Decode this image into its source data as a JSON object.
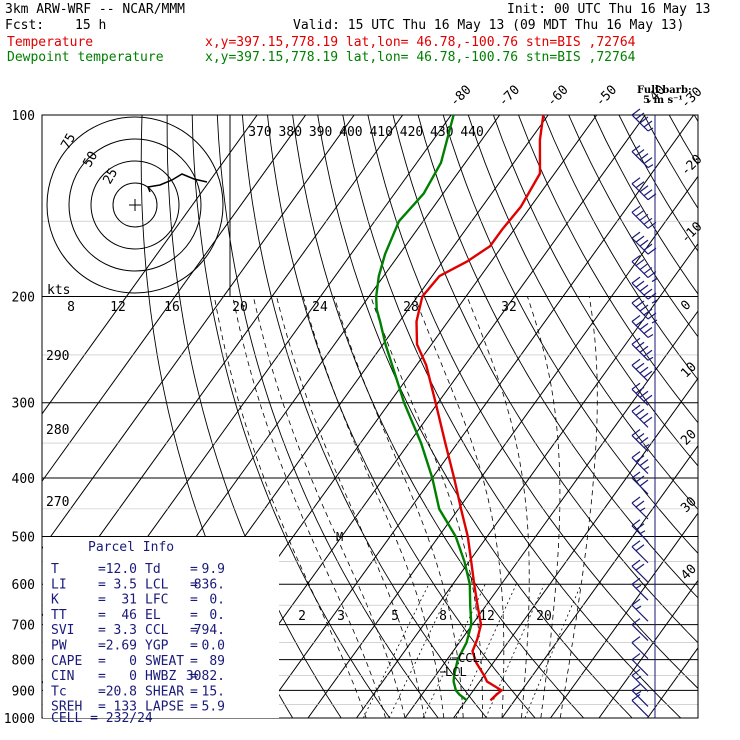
{
  "header": {
    "model": "3km ARW-WRF -- NCAR/MMM",
    "init": "Init: 00 UTC Thu 16 May 13",
    "fcst_label": "Fcst:",
    "fcst_value": "15 h",
    "valid": "Valid: 15 UTC Thu 16 May 13 (09 MDT Thu 16 May 13)"
  },
  "legend": [
    {
      "name": "Temperature",
      "info": "x,y=397.15,778.19   lat,lon= 46.78,-100.76   stn=BIS ,72764",
      "color": "#e00000"
    },
    {
      "name": "Dewpoint temperature",
      "info": "x,y=397.15,778.19   lat,lon= 46.78,-100.76   stn=BIS ,72764",
      "color": "#008000"
    }
  ],
  "full_barb": {
    "line1": "Full barb:",
    "line2": "5 m s⁻¹"
  },
  "parcel_info": {
    "title": "Parcel Info",
    "rows": [
      [
        "T",
        "12.0",
        "Td",
        "9.9"
      ],
      [
        "LI",
        "3.5",
        "LCL",
        "836."
      ],
      [
        "K",
        "31",
        "LFC",
        "0."
      ],
      [
        "TT",
        "46",
        "EL",
        "0."
      ],
      [
        "SVI",
        "3.3",
        "CCL",
        "794."
      ],
      [
        "PW",
        "2.69",
        "YGP",
        "0.0"
      ],
      [
        "CAPE",
        "0",
        "SWEAT",
        "89"
      ],
      [
        "CIN",
        "0",
        "HWBZ",
        "3082."
      ],
      [
        "Tc",
        "20.8",
        "SHEAR",
        "15."
      ],
      [
        "SREH",
        "133",
        "LAPSE",
        "5.9"
      ]
    ],
    "cell": "CELL = 232/24"
  },
  "hodograph": {
    "unit_label": "kts",
    "ring_labels": [
      "25",
      "50",
      "75"
    ],
    "x_ticks": [
      "8",
      "12",
      "16",
      "20",
      "24",
      "28",
      "32"
    ],
    "color": "#000000"
  },
  "markers": {
    "lcl": "LCL",
    "ccl": "CCL",
    "m": "M"
  },
  "chart_data": {
    "type": "line",
    "title": "",
    "ylabel": "",
    "y_scale": "log-pressure (skew-T)",
    "pressure_ticks": [
      100,
      200,
      300,
      400,
      500,
      600,
      700,
      800,
      900,
      1000
    ],
    "isotherm_labels": [
      -80,
      -70,
      -60,
      -50,
      -40,
      -30,
      -20,
      -10,
      0,
      10,
      20,
      30,
      40
    ],
    "theta_labels": [
      370,
      380,
      390,
      400,
      410,
      420,
      430,
      440
    ],
    "theta_left_labels": [
      290,
      280,
      270
    ],
    "mixing_ratio_labels": [
      "2",
      "3",
      "5",
      "8",
      "12",
      "20"
    ],
    "series": [
      {
        "name": "Temperature",
        "color": "#e00000",
        "points": [
          [
            935,
            15.0
          ],
          [
            915,
            15.4
          ],
          [
            900,
            15.8
          ],
          [
            870,
            11.5
          ],
          [
            850,
            10.0
          ],
          [
            810,
            6.5
          ],
          [
            775,
            4.0
          ],
          [
            740,
            3.2
          ],
          [
            700,
            1.8
          ],
          [
            650,
            -1.8
          ],
          [
            600,
            -5.6
          ],
          [
            550,
            -9.6
          ],
          [
            500,
            -14.0
          ],
          [
            450,
            -19.5
          ],
          [
            420,
            -23.0
          ],
          [
            400,
            -25.5
          ],
          [
            350,
            -32.5
          ],
          [
            300,
            -40.5
          ],
          [
            260,
            -48.0
          ],
          [
            240,
            -53.0
          ],
          [
            220,
            -56.5
          ],
          [
            200,
            -59.0
          ],
          [
            185,
            -58.5
          ],
          [
            175,
            -55.0
          ],
          [
            165,
            -52.5
          ],
          [
            155,
            -52.5
          ],
          [
            142,
            -52.0
          ],
          [
            125,
            -53.0
          ],
          [
            110,
            -58.0
          ],
          [
            100,
            -61.0
          ]
        ]
      },
      {
        "name": "Dewpoint temperature",
        "color": "#008000",
        "points": [
          [
            935,
            10.2
          ],
          [
            915,
            7.8
          ],
          [
            900,
            6.4
          ],
          [
            870,
            4.6
          ],
          [
            850,
            3.8
          ],
          [
            800,
            2.2
          ],
          [
            750,
            1.5
          ],
          [
            700,
            -0.2
          ],
          [
            650,
            -3.3
          ],
          [
            600,
            -6.5
          ],
          [
            550,
            -11.0
          ],
          [
            500,
            -16.5
          ],
          [
            450,
            -24.0
          ],
          [
            400,
            -30.0
          ],
          [
            350,
            -37.5
          ],
          [
            300,
            -47.0
          ],
          [
            260,
            -55.0
          ],
          [
            240,
            -59.5
          ],
          [
            220,
            -64.0
          ],
          [
            210,
            -66.5
          ],
          [
            200,
            -68.5
          ],
          [
            185,
            -71.0
          ],
          [
            170,
            -73.0
          ],
          [
            150,
            -75.0
          ],
          [
            135,
            -74.0
          ],
          [
            120,
            -75.0
          ],
          [
            100,
            -79.5
          ]
        ]
      }
    ],
    "wind_barbs": [
      {
        "p": 100,
        "kts": 45
      },
      {
        "p": 115,
        "kts": 45
      },
      {
        "p": 130,
        "kts": 50
      },
      {
        "p": 145,
        "kts": 50
      },
      {
        "p": 160,
        "kts": 50
      },
      {
        "p": 175,
        "kts": 55
      },
      {
        "p": 190,
        "kts": 55
      },
      {
        "p": 205,
        "kts": 55
      },
      {
        "p": 220,
        "kts": 45
      },
      {
        "p": 240,
        "kts": 45
      },
      {
        "p": 260,
        "kts": 40
      },
      {
        "p": 285,
        "kts": 40
      },
      {
        "p": 310,
        "kts": 40
      },
      {
        "p": 340,
        "kts": 35
      },
      {
        "p": 370,
        "kts": 35
      },
      {
        "p": 400,
        "kts": 30
      },
      {
        "p": 440,
        "kts": 25
      },
      {
        "p": 480,
        "kts": 25
      },
      {
        "p": 520,
        "kts": 20
      },
      {
        "p": 560,
        "kts": 20
      },
      {
        "p": 600,
        "kts": 15
      },
      {
        "p": 650,
        "kts": 15
      },
      {
        "p": 700,
        "kts": 10
      },
      {
        "p": 750,
        "kts": 10
      },
      {
        "p": 800,
        "kts": 10
      },
      {
        "p": 850,
        "kts": 15
      },
      {
        "p": 900,
        "kts": 15
      },
      {
        "p": 935,
        "kts": 10
      }
    ],
    "hodograph_trace": [
      [
        0,
        0
      ],
      [
        3,
        -2
      ],
      [
        6,
        -4
      ],
      [
        10,
        -3
      ],
      [
        16,
        0
      ],
      [
        22,
        6
      ],
      [
        30,
        10
      ],
      [
        40,
        14
      ],
      [
        50,
        12
      ],
      [
        60,
        10
      ]
    ]
  }
}
